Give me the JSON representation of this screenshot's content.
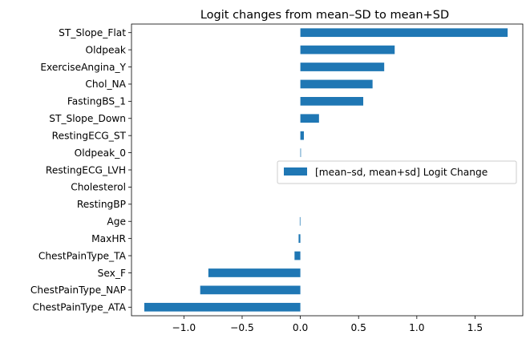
{
  "chart_data": {
    "type": "bar",
    "orientation": "horizontal",
    "title": "Logit changes from mean–SD to mean+SD",
    "xlabel": "",
    "ylabel": "",
    "xlim": [
      -1.45,
      1.91
    ],
    "xticks": [
      -1.0,
      -0.5,
      0.0,
      0.5,
      1.0,
      1.5
    ],
    "xtick_labels": [
      "−1.0",
      "−0.5",
      "0.0",
      "0.5",
      "1.0",
      "1.5"
    ],
    "grid": false,
    "legend_position": "center-right",
    "categories": [
      "ST_Slope_Flat",
      "Oldpeak",
      "ExerciseAngina_Y",
      "Chol_NA",
      "FastingBS_1",
      "ST_Slope_Down",
      "RestingECG_ST",
      "Oldpeak_0",
      "RestingECG_LVH",
      "Cholesterol",
      "RestingBP",
      "Age",
      "MaxHR",
      "ChestPainType_TA",
      "Sex_F",
      "ChestPainType_NAP",
      "ChestPainType_ATA"
    ],
    "series": [
      {
        "name": "[mean–sd, mean+sd] Logit Change",
        "color": "#1f77b4",
        "values": [
          1.78,
          0.81,
          0.72,
          0.62,
          0.54,
          0.16,
          0.03,
          0.005,
          0.0,
          0.0,
          0.0,
          -0.005,
          -0.015,
          -0.05,
          -0.79,
          -0.86,
          -1.34
        ]
      }
    ]
  }
}
